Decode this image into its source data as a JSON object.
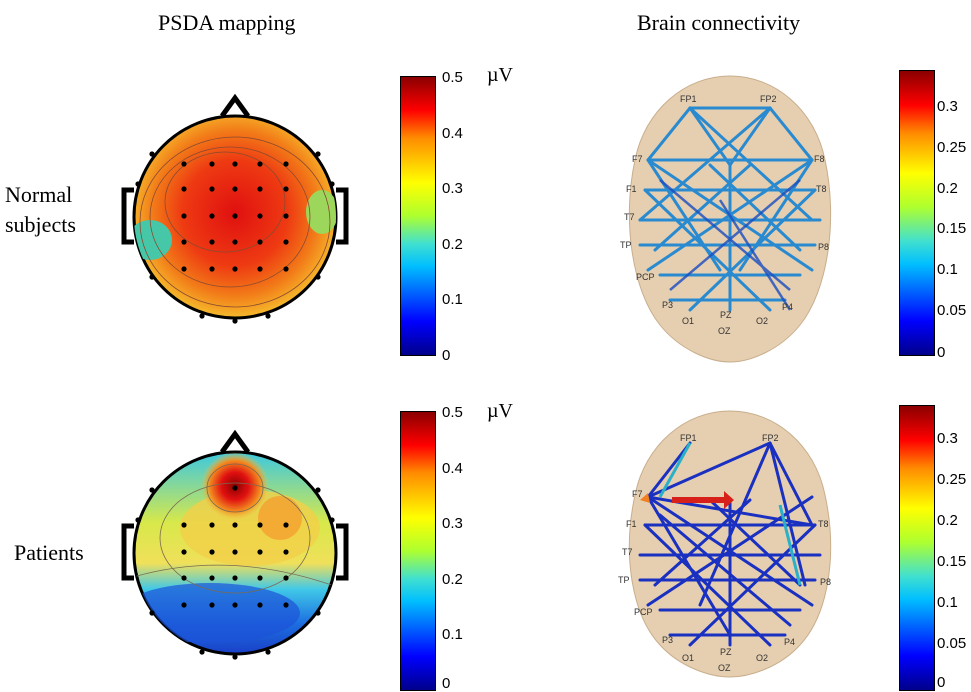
{
  "titles": {
    "psda": "PSDA mapping",
    "connectivity": "Brain connectivity"
  },
  "rows": [
    {
      "label_line1": "Normal",
      "label_line2": "subjects"
    },
    {
      "label_line1": "Patients",
      "label_line2": ""
    }
  ],
  "psda_colorbar": {
    "unit": "µV",
    "ticks": [
      "0.5",
      "0.4",
      "0.3",
      "0.2",
      "0.1",
      "0"
    ]
  },
  "conn_colorbar": {
    "ticks": [
      "0.3",
      "0.25",
      "0.2",
      "0.15",
      "0.1",
      "0.05",
      "0"
    ]
  },
  "electrodes": {
    "top": [
      "FP1",
      "FP2",
      "F7",
      "F8",
      "F1",
      "T8",
      "T7",
      "P8",
      "TP",
      "PCP",
      "P3",
      "P4",
      "O1",
      "O2",
      "OZ",
      "PZ",
      "P8"
    ],
    "bottom": [
      "FP1",
      "FP2",
      "F7",
      "F1",
      "T8",
      "T7",
      "P8",
      "TP",
      "PCP",
      "P3",
      "P4",
      "O1",
      "O2",
      "OZ",
      "PZ"
    ]
  },
  "colors": {
    "psda_high": "#e8261a",
    "psda_mid": "#f5a623",
    "psda_low": "#1e5bdc",
    "head_outline": "#000000",
    "scalp": "#e8d2b4"
  }
}
